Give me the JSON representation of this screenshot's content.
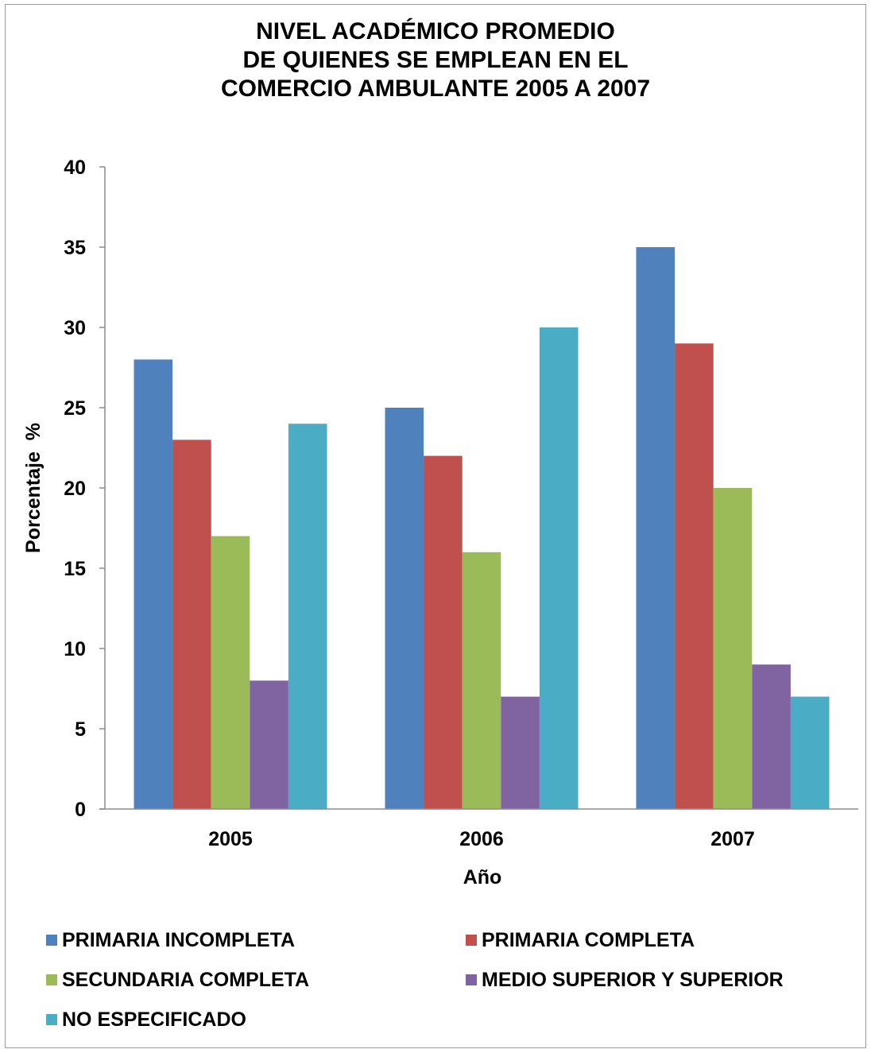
{
  "chart_data": {
    "type": "bar",
    "title": [
      "NIVEL ACADÉMICO PROMEDIO",
      "DE QUIENES SE EMPLEAN EN EL",
      "COMERCIO AMBULANTE 2005 A 2007"
    ],
    "xlabel": "Año",
    "ylabel": "Porcentaje  %",
    "categories": [
      "2005",
      "2006",
      "2007"
    ],
    "ylim": [
      0,
      40
    ],
    "yticks": [
      "0",
      "5",
      "10",
      "15",
      "20",
      "25",
      "30",
      "35",
      "40"
    ],
    "grid": false,
    "legend_position": "bottom",
    "series": [
      {
        "name": "PRIMARIA INCOMPLETA",
        "color": "#4F81BD",
        "values": [
          28,
          25,
          35
        ]
      },
      {
        "name": "PRIMARIA COMPLETA",
        "color": "#C0504D",
        "values": [
          23,
          22,
          29
        ]
      },
      {
        "name": "SECUNDARIA COMPLETA",
        "color": "#9BBB59",
        "values": [
          17,
          16,
          20
        ]
      },
      {
        "name": "MEDIO SUPERIOR Y SUPERIOR",
        "color": "#8064A2",
        "values": [
          8,
          7,
          9
        ]
      },
      {
        "name": "NO ESPECIFICADO",
        "color": "#4BACC6",
        "values": [
          24,
          30,
          7
        ]
      }
    ]
  }
}
